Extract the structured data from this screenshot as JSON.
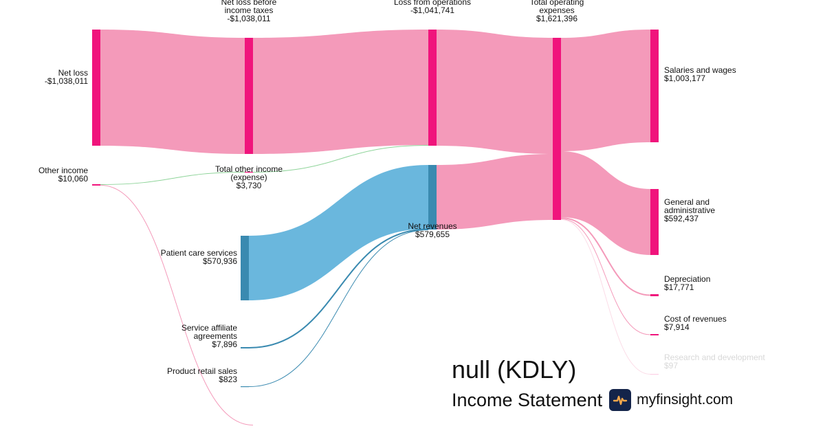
{
  "chart_data": {
    "type": "sankey",
    "title": "null (KDLY)",
    "subtitle": "Income Statement",
    "colors": {
      "expense": "#f0147c",
      "expense_link": "#f49aba",
      "revenue": "#3a8ab0",
      "revenue_link": "#6ab7dd",
      "other": "#2ea043"
    },
    "nodes": [
      {
        "id": "net_loss",
        "lines": [
          "Net loss",
          "-$1,038,011"
        ],
        "value": -1038011
      },
      {
        "id": "other_income",
        "lines": [
          "Other income",
          "$10,060"
        ],
        "value": 10060
      },
      {
        "id": "net_loss_before_tax",
        "lines": [
          "Net loss before",
          "income taxes",
          "-$1,038,011"
        ],
        "value": -1038011
      },
      {
        "id": "total_other_income",
        "lines": [
          "Total other income",
          "(expense)",
          "$3,730"
        ],
        "value": 3730
      },
      {
        "id": "patient_care",
        "lines": [
          "Patient care services",
          "$570,936"
        ],
        "value": 570936
      },
      {
        "id": "service_affiliate",
        "lines": [
          "Service affiliate",
          "agreements",
          "$7,896"
        ],
        "value": 7896
      },
      {
        "id": "product_retail",
        "lines": [
          "Product retail sales",
          "$823"
        ],
        "value": 823
      },
      {
        "id": "loss_from_ops",
        "lines": [
          "Loss from operations",
          "-$1,041,741"
        ],
        "value": -1041741
      },
      {
        "id": "net_revenues",
        "lines": [
          "Net revenues",
          "$579,655"
        ],
        "value": 579655
      },
      {
        "id": "total_opex",
        "lines": [
          "Total operating",
          "expenses",
          "$1,621,396"
        ],
        "value": 1621396
      },
      {
        "id": "salaries",
        "lines": [
          "Salaries and wages",
          "$1,003,177"
        ],
        "value": 1003177
      },
      {
        "id": "g_and_a",
        "lines": [
          "General and",
          "administrative",
          "$592,437"
        ],
        "value": 592437
      },
      {
        "id": "depreciation",
        "lines": [
          "Depreciation",
          "$17,771"
        ],
        "value": 17771
      },
      {
        "id": "cost_of_revenues",
        "lines": [
          "Cost of revenues",
          "$7,914"
        ],
        "value": 7914
      },
      {
        "id": "r_and_d",
        "lines": [
          "Research and development",
          "$97"
        ],
        "value": 97
      }
    ],
    "links": [
      {
        "source": "net_loss",
        "target": "net_loss_before_tax",
        "value": 1038011,
        "kind": "expense"
      },
      {
        "source": "other_income",
        "target": "total_other_income",
        "value": 3730,
        "kind": "other"
      },
      {
        "source": "other_income",
        "target": "",
        "value": 6330,
        "kind": "expense"
      },
      {
        "source": "net_loss_before_tax",
        "target": "loss_from_ops",
        "value": 1038011,
        "kind": "expense"
      },
      {
        "source": "total_other_income",
        "target": "loss_from_ops",
        "value": 3730,
        "kind": "other"
      },
      {
        "source": "patient_care",
        "target": "net_revenues",
        "value": 570936,
        "kind": "revenue"
      },
      {
        "source": "service_affiliate",
        "target": "net_revenues",
        "value": 7896,
        "kind": "revenue"
      },
      {
        "source": "product_retail",
        "target": "net_revenues",
        "value": 823,
        "kind": "revenue"
      },
      {
        "source": "loss_from_ops",
        "target": "total_opex",
        "value": 1041741,
        "kind": "expense"
      },
      {
        "source": "net_revenues",
        "target": "total_opex",
        "value": 579655,
        "kind": "expense"
      },
      {
        "source": "total_opex",
        "target": "salaries",
        "value": 1003177,
        "kind": "expense"
      },
      {
        "source": "total_opex",
        "target": "g_and_a",
        "value": 592437,
        "kind": "expense"
      },
      {
        "source": "total_opex",
        "target": "depreciation",
        "value": 17771,
        "kind": "expense"
      },
      {
        "source": "total_opex",
        "target": "cost_of_revenues",
        "value": 7914,
        "kind": "expense"
      },
      {
        "source": "total_opex",
        "target": "r_and_d",
        "value": 97,
        "kind": "expense"
      }
    ]
  },
  "brand": {
    "title": "null (KDLY)",
    "subtitle": "Income Statement",
    "site": "myfinsight.com",
    "logo_icon": "pulse-chart-icon",
    "logo_bg": "#14244a",
    "logo_fg": "#f2a74b"
  }
}
